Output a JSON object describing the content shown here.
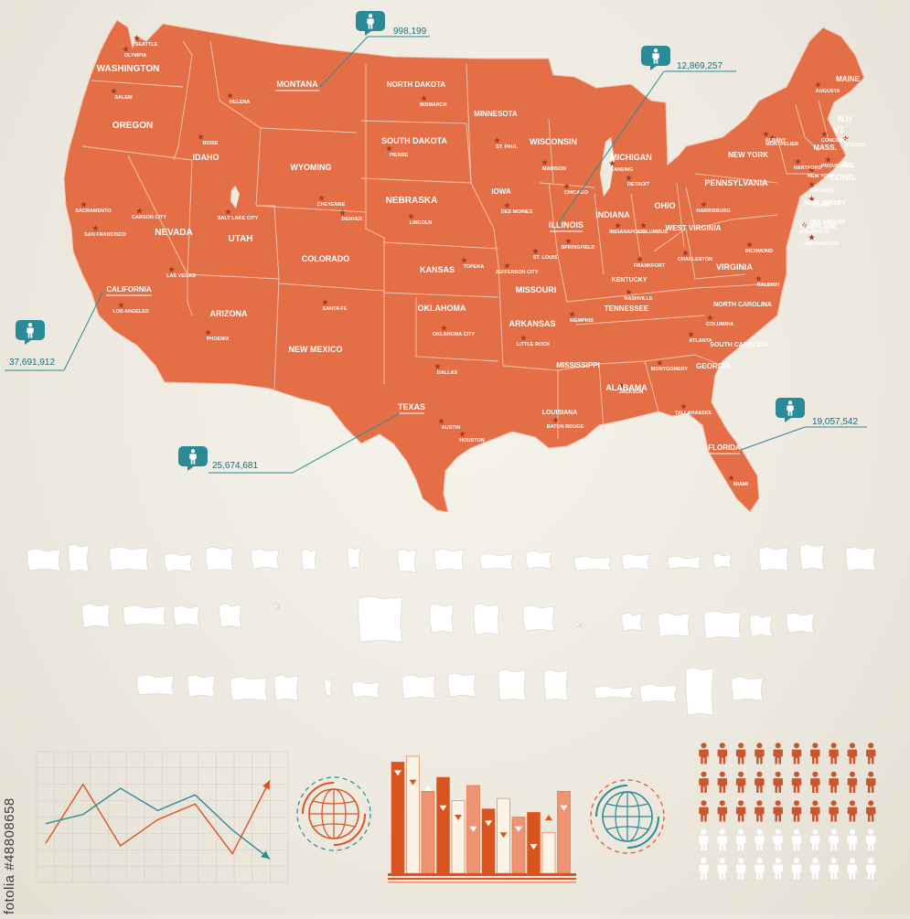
{
  "colors": {
    "map_fill": "#e46f47",
    "map_border": "#f6c7b4",
    "star": "#a83a24",
    "city_dot": "#b23a22",
    "callout": "#2a8a96",
    "callout_line": "#2a8a96",
    "chart_orange": "#d9541f",
    "chart_light": "#ef9472",
    "chart_cream": "#fbf3e6",
    "chart_teal": "#2a8a96",
    "people_orange": "#c9562d",
    "people_white": "#ffffff",
    "silhouette": "#ffffff",
    "text_dark": "#3a3a3a"
  },
  "icons": {
    "callout": "person-icon",
    "globe": "globe-icon",
    "people": "person-icon",
    "star": "capital-star-icon"
  },
  "watermark": "fotolia #48808658",
  "population_callouts": [
    {
      "state": "MONTANA",
      "value": "998,199"
    },
    {
      "state": "ILLINOIS",
      "value": "12,869,257"
    },
    {
      "state": "CALIFORNIA",
      "value": "37,691,912"
    },
    {
      "state": "TEXAS",
      "value": "25,674,681"
    },
    {
      "state": "FLORIDA",
      "value": "19,057,542"
    }
  ],
  "states": [
    "WASHINGTON",
    "OREGON",
    "IDAHO",
    "MONTANA",
    "WYOMING",
    "NORTH DAKOTA",
    "SOUTH DAKOTA",
    "NEBRASKA",
    "MINNESOTA",
    "WISCONSIN",
    "MICHIGAN",
    "IOWA",
    "ILLINOIS",
    "INDIANA",
    "OHIO",
    "PENNSYLVANIA",
    "NEW YORK",
    "MAINE",
    "N.H",
    "VT.",
    "MASS.",
    "R.I.",
    "CONN.",
    "NEW JERSEY",
    "DELAWARE",
    "WEST VIRGINIA",
    "VIRGINIA",
    "MARYLAND",
    "KENTUCKY",
    "TENNESSEE",
    "NORTH CAROLINA",
    "SOUTH CAROLINA",
    "GEORGIA",
    "FLORIDA",
    "ALABAMA",
    "MISSISSIPPI",
    "LOUISIANA",
    "ARKANSAS",
    "MISSOURI",
    "KANSAS",
    "OKLAHOMA",
    "TEXAS",
    "NEW MEXICO",
    "COLORADO",
    "UTAH",
    "ARIZONA",
    "NEVADA",
    "CALIFORNIA"
  ],
  "cities": [
    "SEATTLE",
    "OLYMPIA",
    "SALEM",
    "BOISE",
    "HELENA",
    "BISMARCK",
    "PIERRE",
    "CHEYENNE",
    "DENVER",
    "LINCOLN",
    "TOPEKA",
    "ST. PAUL",
    "MADISON",
    "CHICAGO",
    "LANSING",
    "DETROIT",
    "DES MOINES",
    "SPRINGFIELD",
    "INDIANAPOLIS",
    "COLUMBUS",
    "HARRISBURG",
    "ALBANY",
    "AUGUSTA",
    "MONTPELIER",
    "CONCORD",
    "BOSTON",
    "HARTFORD",
    "PROVIDENCE",
    "NEW YORK",
    "TRENTON",
    "DOVER",
    "ANNAPOLIS",
    "WASHINGTON",
    "CHARLESTON",
    "RICHMOND",
    "FRANKFORT",
    "NASHVILLE",
    "RALEIGH",
    "COLUMBIA",
    "ATLANTA",
    "MONTGOMERY",
    "TALLAHASSEE",
    "MIAMI",
    "JACKSON",
    "BATON ROUGE",
    "LITTLE ROCK",
    "MEMPHIS",
    "JEFFERSON CITY",
    "ST. LOUIS",
    "OKLAHOMA CITY",
    "AUSTIN",
    "HOUSTON",
    "DALLAS",
    "SANTA FE",
    "PHOENIX",
    "SALT LAKE CITY",
    "CARSON CITY",
    "SACRAMENTO",
    "SAN FRANCISCO",
    "LAS VEGAS",
    "LOS ANGELES"
  ],
  "chart_data": [
    {
      "type": "line",
      "title": "",
      "xlabel": "",
      "ylabel": "",
      "grid": true,
      "x": [
        0,
        1,
        2,
        3,
        4,
        5,
        6
      ],
      "series": [
        {
          "values": [
            30,
            75,
            28,
            48,
            60,
            22,
            78
          ],
          "color": "#d9541f"
        },
        {
          "values": [
            45,
            52,
            72,
            55,
            67,
            40,
            18
          ],
          "color": "#2a8a96"
        }
      ],
      "ylim": [
        0,
        100
      ]
    },
    {
      "type": "bar",
      "title": "",
      "grid": false,
      "categories": [
        "1",
        "2",
        "3",
        "4",
        "5",
        "6",
        "7",
        "8",
        "9",
        "10",
        "11",
        "12"
      ],
      "series": [
        {
          "values": [
            95,
            80,
            70,
            58,
            62,
            40,
            55,
            35,
            48,
            25,
            35,
            58
          ],
          "color": "#d9541f"
        },
        {
          "values": [
            88,
            100,
            75,
            82,
            50,
            75,
            45,
            64,
            40,
            52,
            50,
            70
          ],
          "color": "#ef9472"
        }
      ],
      "ylim": [
        0,
        100
      ]
    },
    {
      "type": "table",
      "title": "",
      "rows": 5,
      "columns": 10,
      "filled": 30,
      "total": 50
    }
  ]
}
